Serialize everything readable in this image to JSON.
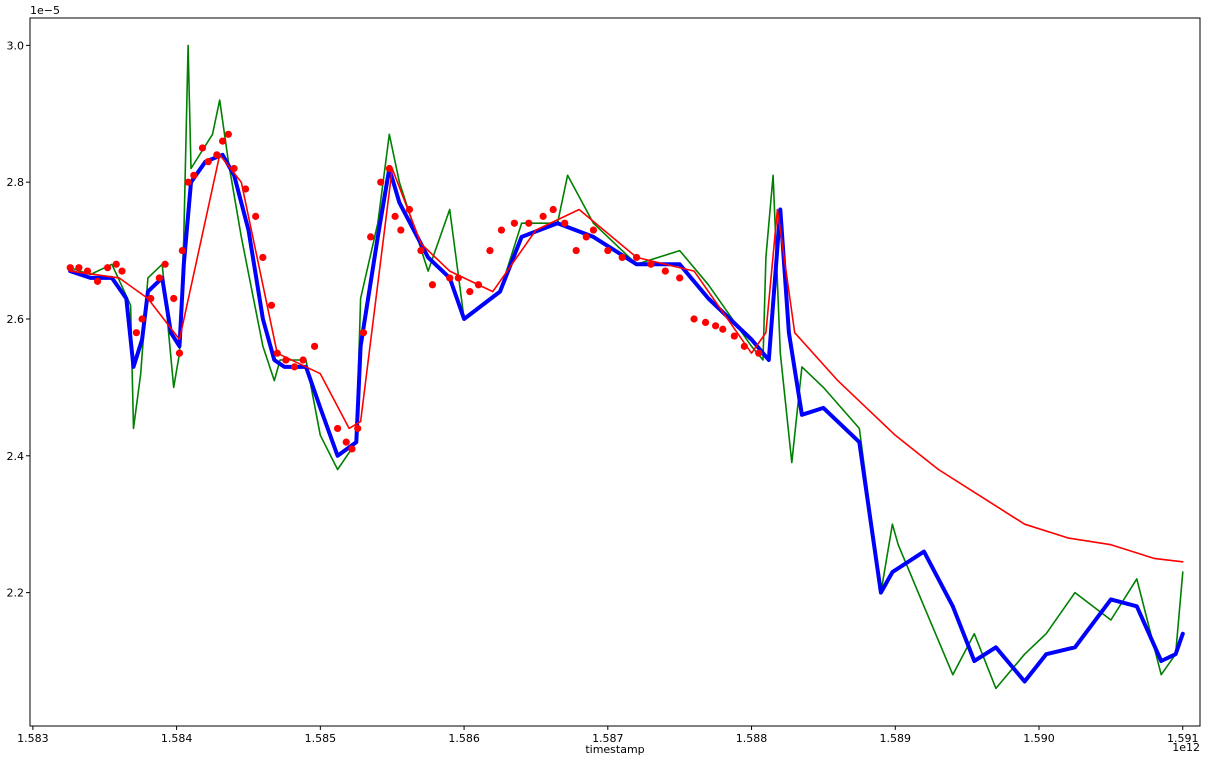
{
  "chart_data": {
    "type": "line",
    "xlabel": "timestamp",
    "x_offset_text": "1e12",
    "y_offset_text": "1e−5",
    "xlim": [
      1.58298,
      1.59112
    ],
    "ylim": [
      2.005,
      3.04
    ],
    "x_ticks": [
      1.583,
      1.584,
      1.585,
      1.586,
      1.587,
      1.588,
      1.589,
      1.59,
      1.591
    ],
    "x_tick_labels": [
      "1.583",
      "1.584",
      "1.585",
      "1.586",
      "1.587",
      "1.588",
      "1.589",
      "1.590",
      "1.591"
    ],
    "y_ticks": [
      2.2,
      2.4,
      2.6,
      2.8,
      3.0
    ],
    "y_tick_labels": [
      "2.2",
      "2.4",
      "2.6",
      "2.8",
      "3.0"
    ],
    "grid": false,
    "colors": {
      "price": "#008000",
      "smoothed": "#0000ff",
      "average": "#ff0000",
      "markers": "#ff0000"
    },
    "series": [
      {
        "style": "thin-line",
        "color": "#008000",
        "x": [
          1.58326,
          1.5834,
          1.58355,
          1.58368,
          1.5837,
          1.58375,
          1.5838,
          1.5839,
          1.58398,
          1.58402,
          1.58405,
          1.58408,
          1.5841,
          1.58425,
          1.5843,
          1.58436,
          1.58445,
          1.5846,
          1.58468,
          1.58472,
          1.5849,
          1.585,
          1.58512,
          1.58525,
          1.58528,
          1.5854,
          1.58548,
          1.58555,
          1.58575,
          1.5859,
          1.586,
          1.58625,
          1.5864,
          1.58665,
          1.58672,
          1.5869,
          1.5872,
          1.5875,
          1.5877,
          1.588,
          1.58808,
          1.5881,
          1.58815,
          1.5882,
          1.58828,
          1.58835,
          1.5885,
          1.58875,
          1.5889,
          1.58898,
          1.58902,
          1.5892,
          1.5894,
          1.58955,
          1.5897,
          1.5899,
          1.59005,
          1.59025,
          1.5905,
          1.59068,
          1.59085,
          1.59095,
          1.591
        ],
        "y": [
          2.675,
          2.665,
          2.68,
          2.62,
          2.44,
          2.52,
          2.66,
          2.68,
          2.5,
          2.55,
          2.72,
          3.0,
          2.82,
          2.87,
          2.92,
          2.83,
          2.72,
          2.56,
          2.51,
          2.54,
          2.54,
          2.43,
          2.38,
          2.42,
          2.63,
          2.74,
          2.87,
          2.8,
          2.67,
          2.76,
          2.6,
          2.64,
          2.74,
          2.74,
          2.81,
          2.74,
          2.68,
          2.7,
          2.65,
          2.56,
          2.54,
          2.69,
          2.81,
          2.55,
          2.39,
          2.53,
          2.5,
          2.44,
          2.2,
          2.3,
          2.27,
          2.18,
          2.08,
          2.14,
          2.06,
          2.11,
          2.14,
          2.2,
          2.16,
          2.22,
          2.08,
          2.11,
          2.23
        ]
      },
      {
        "style": "thick-line",
        "color": "#0000ff",
        "x": [
          1.58326,
          1.5834,
          1.58355,
          1.58365,
          1.5837,
          1.58376,
          1.5838,
          1.5839,
          1.58396,
          1.58402,
          1.58405,
          1.5841,
          1.5842,
          1.58432,
          1.5844,
          1.5845,
          1.5846,
          1.58468,
          1.58475,
          1.5849,
          1.585,
          1.58512,
          1.58525,
          1.58528,
          1.5854,
          1.58548,
          1.58555,
          1.58575,
          1.5859,
          1.586,
          1.58625,
          1.5864,
          1.58665,
          1.5869,
          1.5872,
          1.5875,
          1.5877,
          1.588,
          1.58812,
          1.5882,
          1.58826,
          1.58835,
          1.5885,
          1.58875,
          1.5889,
          1.58898,
          1.5892,
          1.5894,
          1.58955,
          1.5897,
          1.5899,
          1.59005,
          1.59025,
          1.5905,
          1.59068,
          1.59085,
          1.59095,
          1.591
        ],
        "y": [
          2.67,
          2.66,
          2.66,
          2.63,
          2.53,
          2.57,
          2.64,
          2.66,
          2.58,
          2.56,
          2.68,
          2.8,
          2.83,
          2.84,
          2.81,
          2.73,
          2.6,
          2.54,
          2.53,
          2.53,
          2.47,
          2.4,
          2.42,
          2.56,
          2.72,
          2.82,
          2.77,
          2.69,
          2.66,
          2.6,
          2.64,
          2.72,
          2.74,
          2.72,
          2.68,
          2.68,
          2.63,
          2.57,
          2.54,
          2.76,
          2.58,
          2.46,
          2.47,
          2.42,
          2.2,
          2.23,
          2.26,
          2.18,
          2.1,
          2.12,
          2.07,
          2.11,
          2.12,
          2.19,
          2.18,
          2.1,
          2.11,
          2.14
        ]
      },
      {
        "style": "thin-line",
        "color": "#ff0000",
        "x": [
          1.58326,
          1.5836,
          1.5838,
          1.58402,
          1.5843,
          1.58445,
          1.5847,
          1.585,
          1.5852,
          1.58528,
          1.5855,
          1.5857,
          1.5859,
          1.5862,
          1.5865,
          1.5868,
          1.5872,
          1.5876,
          1.588,
          1.5881,
          1.58818,
          1.5883,
          1.5886,
          1.5888,
          1.589,
          1.5893,
          1.5896,
          1.5899,
          1.5902,
          1.5905,
          1.5908,
          1.591
        ],
        "y": [
          2.67,
          2.66,
          2.63,
          2.57,
          2.84,
          2.8,
          2.55,
          2.52,
          2.44,
          2.45,
          2.82,
          2.71,
          2.67,
          2.64,
          2.73,
          2.76,
          2.69,
          2.67,
          2.55,
          2.58,
          2.76,
          2.58,
          2.51,
          2.47,
          2.43,
          2.38,
          2.34,
          2.3,
          2.28,
          2.27,
          2.25,
          2.245
        ]
      }
    ],
    "marker_series": {
      "color": "#ff0000",
      "style": "circle-markers",
      "x": [
        1.58326,
        1.58332,
        1.58338,
        1.58345,
        1.58352,
        1.58358,
        1.58362,
        1.58372,
        1.58376,
        1.58382,
        1.58388,
        1.58392,
        1.58398,
        1.58402,
        1.58404,
        1.58408,
        1.58412,
        1.58418,
        1.58422,
        1.58428,
        1.58432,
        1.58436,
        1.5844,
        1.58448,
        1.58455,
        1.5846,
        1.58466,
        1.5847,
        1.58476,
        1.58482,
        1.58488,
        1.58496,
        1.58512,
        1.58518,
        1.58522,
        1.58526,
        1.5853,
        1.58535,
        1.58542,
        1.58548,
        1.58552,
        1.58556,
        1.58562,
        1.5857,
        1.58578,
        1.5859,
        1.58596,
        1.58604,
        1.5861,
        1.58618,
        1.58626,
        1.58635,
        1.58645,
        1.58655,
        1.58662,
        1.5867,
        1.58678,
        1.58685,
        1.5869,
        1.587,
        1.5871,
        1.5872,
        1.5873,
        1.5874,
        1.5875,
        1.5876,
        1.58768,
        1.58775,
        1.5878,
        1.58788,
        1.58795,
        1.58805
      ],
      "y": [
        2.675,
        2.675,
        2.67,
        2.655,
        2.675,
        2.68,
        2.67,
        2.58,
        2.6,
        2.63,
        2.66,
        2.68,
        2.63,
        2.55,
        2.7,
        2.8,
        2.81,
        2.85,
        2.83,
        2.84,
        2.86,
        2.87,
        2.82,
        2.79,
        2.75,
        2.69,
        2.62,
        2.55,
        2.54,
        2.53,
        2.54,
        2.56,
        2.44,
        2.42,
        2.41,
        2.44,
        2.58,
        2.72,
        2.8,
        2.82,
        2.75,
        2.73,
        2.76,
        2.7,
        2.65,
        2.66,
        2.66,
        2.64,
        2.65,
        2.7,
        2.73,
        2.74,
        2.74,
        2.75,
        2.76,
        2.74,
        2.7,
        2.72,
        2.73,
        2.7,
        2.69,
        2.69,
        2.68,
        2.67,
        2.66,
        2.6,
        2.595,
        2.59,
        2.585,
        2.575,
        2.56,
        2.55
      ]
    }
  }
}
